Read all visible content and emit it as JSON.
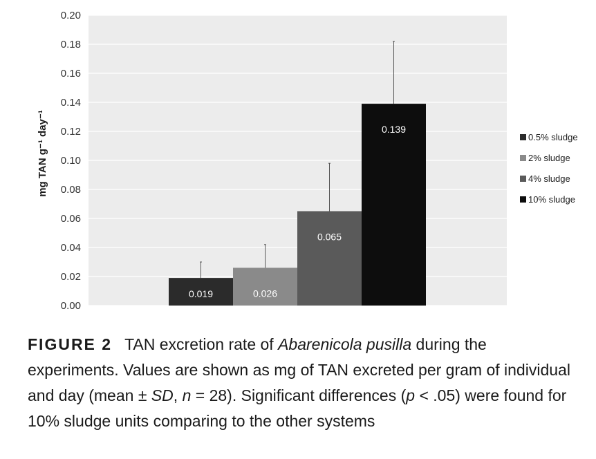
{
  "chart_data": {
    "type": "bar",
    "categories": [
      "0.5% sludge",
      "2% sludge",
      "4% sludge",
      "10% sludge"
    ],
    "values": [
      0.019,
      0.026,
      0.065,
      0.139
    ],
    "error_bars": [
      0.011,
      0.016,
      0.033,
      0.043
    ],
    "data_labels": [
      "0.019",
      "0.026",
      "0.065",
      "0.139"
    ],
    "bar_colors": [
      "#2b2b2b",
      "#8a8a8a",
      "#5a5a5a",
      "#0d0d0d"
    ],
    "data_label_colors": [
      "#ffffff",
      "#ffffff",
      "#ffffff",
      "#ffffff"
    ],
    "ylabel": "mg TAN g⁻¹ day⁻¹",
    "ylim": [
      0,
      0.2
    ],
    "yticks": [
      "0.00",
      "0.02",
      "0.04",
      "0.06",
      "0.08",
      "0.10",
      "0.12",
      "0.14",
      "0.16",
      "0.18",
      "0.20"
    ],
    "grid": true,
    "legend": {
      "position": "right",
      "entries": [
        "0.5% sludge",
        "2% sludge",
        "4% sludge",
        "10% sludge"
      ]
    },
    "plot_background": "#ececec"
  },
  "caption": {
    "label": "FIGURE 2",
    "segments": [
      {
        "text": "TAN excretion rate of ",
        "italic": false
      },
      {
        "text": "Abarenicola pusilla",
        "italic": true
      },
      {
        "text": " during the experiments. Values are shown as mg of TAN excreted per gram of individual and day (mean ± ",
        "italic": false
      },
      {
        "text": "SD",
        "italic": true
      },
      {
        "text": ", ",
        "italic": false
      },
      {
        "text": "n",
        "italic": true
      },
      {
        "text": " = 28). Significant differences (",
        "italic": false
      },
      {
        "text": "p",
        "italic": true
      },
      {
        "text": " < .05) were found for 10% sludge units comparing to the other systems",
        "italic": false
      }
    ]
  }
}
